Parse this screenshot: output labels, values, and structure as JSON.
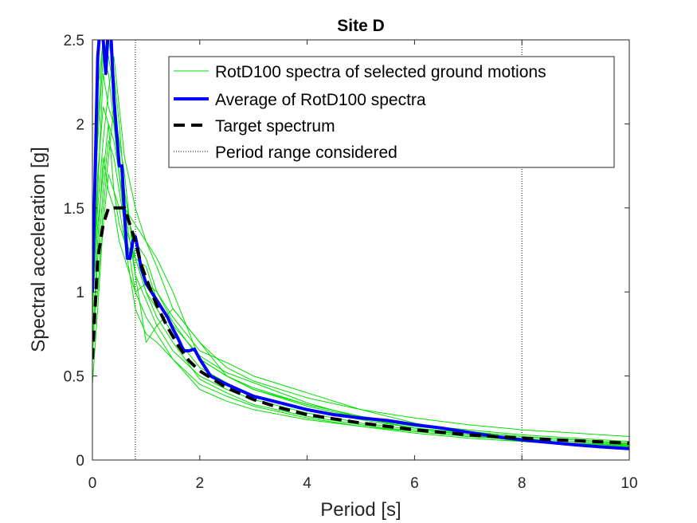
{
  "chart_data": {
    "type": "line",
    "title": "Site D",
    "xlabel": "Period [s]",
    "ylabel": "Spectral acceleration [g]",
    "xlim": [
      0,
      10
    ],
    "ylim": [
      0,
      2.5
    ],
    "xticks": [
      0,
      2,
      4,
      6,
      8,
      10
    ],
    "yticks": [
      0,
      0.5,
      1,
      1.5,
      2,
      2.5
    ],
    "xtick_labels": [
      "0",
      "2",
      "4",
      "6",
      "8",
      "10"
    ],
    "ytick_labels": [
      "0",
      "0.5",
      "1",
      "1.5",
      "2",
      "2.5"
    ],
    "grid": false,
    "legend_position": "top-right",
    "period_range": [
      0.8,
      8.0
    ],
    "legend": [
      {
        "label": "RotD100 spectra of selected ground motions",
        "style": "thin-green"
      },
      {
        "label": "Average of RotD100 spectra",
        "style": "thick-blue"
      },
      {
        "label": "Target spectrum",
        "style": "dashed-black"
      },
      {
        "label": "Period range considered",
        "style": "dotted-black"
      }
    ],
    "colors": {
      "records": "#00e000",
      "average": "#0000ff",
      "target": "#000000",
      "period": "#000000"
    },
    "series": [
      {
        "name": "Target spectrum",
        "x": [
          0,
          0.1,
          0.2,
          0.3,
          0.5,
          0.6,
          0.7,
          0.8,
          0.9,
          1.0,
          1.2,
          1.4,
          1.6,
          1.8,
          2.0,
          2.5,
          3.0,
          3.5,
          4.0,
          5.0,
          6.0,
          7.0,
          8.0,
          9.0,
          10.0
        ],
        "y": [
          0.6,
          1.2,
          1.4,
          1.5,
          1.5,
          1.5,
          1.4,
          1.3,
          1.17,
          1.08,
          0.92,
          0.79,
          0.68,
          0.59,
          0.53,
          0.43,
          0.36,
          0.31,
          0.27,
          0.22,
          0.18,
          0.15,
          0.13,
          0.115,
          0.1
        ]
      },
      {
        "name": "Average of RotD100 spectra",
        "x": [
          0,
          0.05,
          0.1,
          0.15,
          0.2,
          0.25,
          0.3,
          0.35,
          0.4,
          0.5,
          0.55,
          0.6,
          0.65,
          0.7,
          0.75,
          0.8,
          0.85,
          0.9,
          1.0,
          1.1,
          1.2,
          1.3,
          1.4,
          1.5,
          1.6,
          1.7,
          1.8,
          1.9,
          2.0,
          2.2,
          2.5,
          3.0,
          3.5,
          4.0,
          4.5,
          5.0,
          5.5,
          6.0,
          6.5,
          7.0,
          7.5,
          8.0,
          8.5,
          9.0,
          9.5,
          10.0
        ],
        "y": [
          1.0,
          1.7,
          2.4,
          2.6,
          2.5,
          2.3,
          2.6,
          2.5,
          2.15,
          1.75,
          1.75,
          1.45,
          1.2,
          1.2,
          1.3,
          1.33,
          1.25,
          1.15,
          1.05,
          1.0,
          0.95,
          0.9,
          0.85,
          0.78,
          0.72,
          0.65,
          0.65,
          0.66,
          0.6,
          0.5,
          0.45,
          0.38,
          0.34,
          0.3,
          0.27,
          0.25,
          0.235,
          0.21,
          0.19,
          0.165,
          0.14,
          0.12,
          0.105,
          0.09,
          0.078,
          0.068
        ]
      },
      {
        "name": "RotD100 spectra of selected ground motions",
        "group": "record",
        "x": [
          0,
          0.1,
          0.2,
          0.3,
          0.4,
          0.5,
          0.6,
          0.8,
          1.0,
          1.2,
          1.5,
          2.0,
          2.5,
          3.0,
          4.0,
          5.0,
          6.0,
          7.0,
          8.0,
          9.0,
          10.0
        ],
        "y": [
          0.9,
          1.6,
          2.3,
          2.1,
          2.0,
          1.7,
          1.5,
          1.3,
          1.2,
          1.0,
          0.82,
          0.6,
          0.5,
          0.42,
          0.33,
          0.26,
          0.21,
          0.17,
          0.14,
          0.12,
          0.1
        ]
      },
      {
        "name": "RotD100 spectra of selected ground motions",
        "group": "record",
        "x": [
          0,
          0.1,
          0.2,
          0.3,
          0.4,
          0.5,
          0.6,
          0.8,
          1.0,
          1.2,
          1.5,
          2.0,
          2.5,
          3.0,
          4.0,
          5.0,
          6.0,
          7.0,
          8.0,
          9.0,
          10.0
        ],
        "y": [
          0.8,
          2.0,
          2.5,
          2.4,
          2.2,
          1.8,
          1.5,
          1.1,
          0.95,
          0.8,
          0.65,
          0.5,
          0.42,
          0.36,
          0.28,
          0.22,
          0.18,
          0.15,
          0.12,
          0.1,
          0.08
        ]
      },
      {
        "name": "RotD100 spectra of selected ground motions",
        "group": "record",
        "x": [
          0,
          0.1,
          0.2,
          0.3,
          0.4,
          0.5,
          0.6,
          0.8,
          1.0,
          1.2,
          1.5,
          2.0,
          2.5,
          3.0,
          4.0,
          5.0,
          6.0,
          7.0,
          8.0,
          9.0,
          10.0
        ],
        "y": [
          0.45,
          0.9,
          1.4,
          1.7,
          1.6,
          1.4,
          1.3,
          0.9,
          0.75,
          0.7,
          0.6,
          0.42,
          0.35,
          0.3,
          0.24,
          0.2,
          0.17,
          0.14,
          0.12,
          0.1,
          0.085
        ]
      },
      {
        "name": "RotD100 spectra of selected ground motions",
        "group": "record",
        "x": [
          0,
          0.1,
          0.2,
          0.3,
          0.4,
          0.5,
          0.6,
          0.8,
          1.0,
          1.2,
          1.5,
          2.0,
          2.5,
          3.0,
          4.0,
          5.0,
          6.0,
          7.0,
          8.0,
          9.0,
          10.0
        ],
        "y": [
          1.0,
          1.5,
          1.9,
          2.2,
          2.4,
          2.1,
          1.8,
          1.5,
          1.3,
          1.15,
          0.9,
          0.7,
          0.55,
          0.47,
          0.37,
          0.3,
          0.25,
          0.21,
          0.18,
          0.16,
          0.14
        ]
      },
      {
        "name": "RotD100 spectra of selected ground motions",
        "group": "record",
        "x": [
          0,
          0.1,
          0.2,
          0.3,
          0.4,
          0.5,
          0.6,
          0.8,
          1.0,
          1.2,
          1.5,
          2.0,
          2.5,
          3.0,
          4.0,
          5.0,
          6.0,
          7.0,
          8.0,
          9.0,
          10.0
        ],
        "y": [
          0.7,
          1.3,
          1.8,
          1.6,
          1.5,
          1.3,
          1.2,
          1.0,
          1.05,
          1.0,
          0.85,
          0.65,
          0.58,
          0.5,
          0.4,
          0.3,
          0.22,
          0.16,
          0.12,
          0.1,
          0.09
        ]
      },
      {
        "name": "RotD100 spectra of selected ground motions",
        "group": "record",
        "x": [
          0,
          0.1,
          0.2,
          0.3,
          0.4,
          0.5,
          0.6,
          0.8,
          1.0,
          1.2,
          1.5,
          2.0,
          2.5,
          3.0,
          4.0,
          5.0,
          6.0,
          7.0,
          8.0,
          9.0,
          10.0
        ],
        "y": [
          1.1,
          2.2,
          2.5,
          2.5,
          2.3,
          2.0,
          1.6,
          1.2,
          1.0,
          0.85,
          0.7,
          0.48,
          0.4,
          0.33,
          0.26,
          0.21,
          0.17,
          0.14,
          0.12,
          0.1,
          0.09
        ]
      },
      {
        "name": "RotD100 spectra of selected ground motions",
        "group": "record",
        "x": [
          0,
          0.1,
          0.2,
          0.3,
          0.4,
          0.5,
          0.6,
          0.8,
          1.0,
          1.2,
          1.5,
          2.0,
          2.5,
          3.0,
          4.0,
          5.0,
          6.0,
          7.0,
          8.0,
          9.0,
          10.0
        ],
        "y": [
          0.6,
          1.2,
          1.6,
          1.9,
          1.8,
          1.6,
          1.4,
          1.2,
          1.0,
          0.9,
          0.75,
          0.55,
          0.46,
          0.38,
          0.3,
          0.24,
          0.19,
          0.16,
          0.13,
          0.11,
          0.095
        ]
      },
      {
        "name": "RotD100 spectra of selected ground motions",
        "group": "record",
        "x": [
          0,
          0.1,
          0.2,
          0.3,
          0.4,
          0.5,
          0.6,
          0.8,
          1.0,
          1.2,
          1.5,
          2.0,
          2.5,
          3.0,
          4.0,
          5.0,
          6.0,
          7.0,
          8.0,
          9.0,
          10.0
        ],
        "y": [
          0.75,
          1.0,
          1.5,
          1.8,
          2.1,
          1.9,
          1.7,
          1.1,
          0.7,
          0.8,
          0.9,
          0.7,
          0.5,
          0.42,
          0.32,
          0.25,
          0.2,
          0.17,
          0.14,
          0.12,
          0.1
        ]
      },
      {
        "name": "RotD100 spectra of selected ground motions",
        "group": "record",
        "x": [
          0,
          0.1,
          0.2,
          0.3,
          0.4,
          0.5,
          0.6,
          0.8,
          1.0,
          1.2,
          1.5,
          2.0,
          2.5,
          3.0,
          4.0,
          5.0,
          6.0,
          7.0,
          8.0,
          9.0,
          10.0
        ],
        "y": [
          0.85,
          1.7,
          2.1,
          2.0,
          1.9,
          1.7,
          1.5,
          1.4,
          1.3,
          1.2,
          1.0,
          0.6,
          0.5,
          0.43,
          0.33,
          0.26,
          0.21,
          0.18,
          0.15,
          0.13,
          0.11
        ]
      },
      {
        "name": "RotD100 spectra of selected ground motions",
        "group": "record",
        "x": [
          0,
          0.1,
          0.2,
          0.3,
          0.4,
          0.5,
          0.6,
          0.8,
          1.0,
          1.2,
          1.5,
          2.0,
          2.5,
          3.0,
          4.0,
          5.0,
          6.0,
          7.0,
          8.0,
          9.0,
          10.0
        ],
        "y": [
          0.9,
          1.4,
          1.7,
          2.0,
          1.6,
          1.5,
          1.3,
          1.2,
          1.15,
          0.95,
          0.8,
          0.62,
          0.52,
          0.46,
          0.34,
          0.25,
          0.19,
          0.15,
          0.11,
          0.09,
          0.07
        ]
      },
      {
        "name": "RotD100 spectra of selected ground motions",
        "group": "record",
        "x": [
          0,
          0.1,
          0.2,
          0.3,
          0.4,
          0.5,
          0.6,
          0.8,
          1.0,
          1.2,
          1.5,
          2.0,
          2.5,
          3.0,
          4.0,
          5.0,
          6.0,
          7.0,
          8.0,
          9.0,
          10.0
        ],
        "y": [
          1.2,
          1.9,
          2.4,
          2.3,
          2.0,
          1.7,
          1.4,
          1.0,
          0.85,
          0.75,
          0.6,
          0.45,
          0.38,
          0.32,
          0.25,
          0.2,
          0.16,
          0.13,
          0.11,
          0.09,
          0.075
        ]
      }
    ]
  }
}
